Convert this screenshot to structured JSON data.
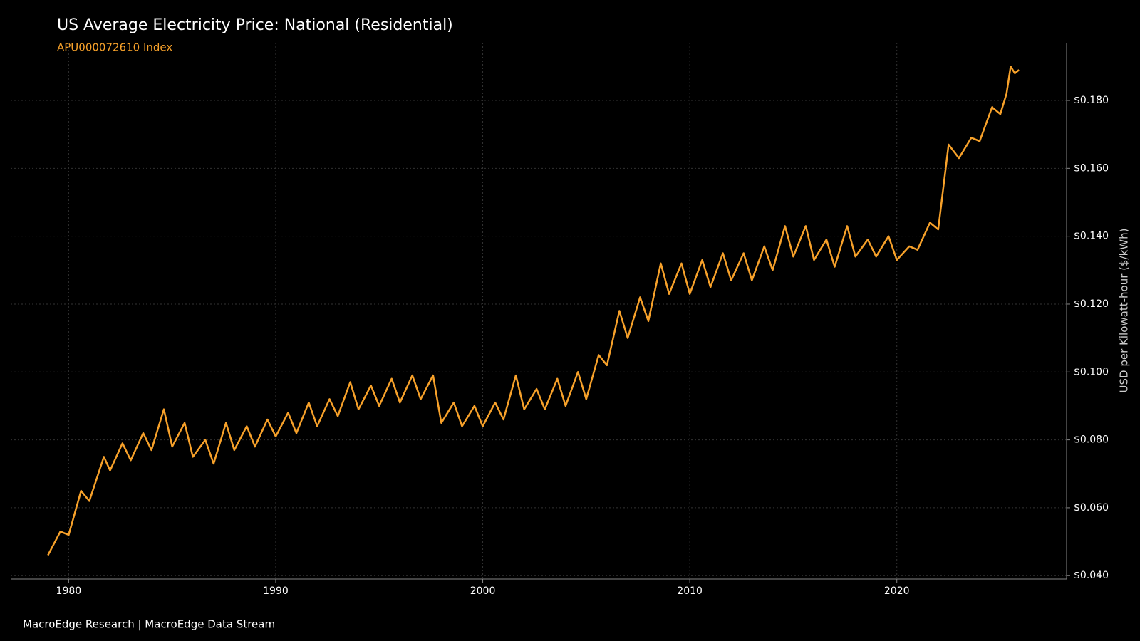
{
  "chart_data": {
    "type": "line",
    "title": "US Average Electricity Price: National (Residential)",
    "subtitle": "APU000072610 Index",
    "source": "MacroEdge Research | MacroEdge Data Stream",
    "y_label": "USD per Kilowatt-hour ($/kWh)",
    "color": "#f7a12a",
    "grid": true,
    "x": [
      1979.0,
      1979.6,
      1980.0,
      1980.6,
      1981.0,
      1981.7,
      1982.0,
      1982.6,
      1983.0,
      1983.6,
      1984.0,
      1984.6,
      1985.0,
      1985.6,
      1986.0,
      1986.6,
      1987.0,
      1987.6,
      1988.0,
      1988.6,
      1989.0,
      1989.6,
      1990.0,
      1990.6,
      1991.0,
      1991.6,
      1992.0,
      1992.6,
      1993.0,
      1993.6,
      1994.0,
      1994.6,
      1995.0,
      1995.6,
      1996.0,
      1996.6,
      1997.0,
      1997.6,
      1998.0,
      1998.6,
      1999.0,
      1999.6,
      2000.0,
      2000.6,
      2001.0,
      2001.6,
      2002.0,
      2002.6,
      2003.0,
      2003.6,
      2004.0,
      2004.6,
      2005.0,
      2005.6,
      2006.0,
      2006.6,
      2007.0,
      2007.6,
      2008.0,
      2008.6,
      2009.0,
      2009.6,
      2010.0,
      2010.6,
      2011.0,
      2011.6,
      2012.0,
      2012.6,
      2013.0,
      2013.6,
      2014.0,
      2014.6,
      2015.0,
      2015.6,
      2016.0,
      2016.6,
      2017.0,
      2017.6,
      2018.0,
      2018.6,
      2019.0,
      2019.6,
      2020.0,
      2020.6,
      2021.0,
      2021.6,
      2022.0,
      2022.5,
      2023.0,
      2023.6,
      2024.0,
      2024.6,
      2025.0,
      2025.3,
      2025.5,
      2025.7,
      2025.9
    ],
    "values": [
      0.046,
      0.053,
      0.052,
      0.065,
      0.062,
      0.075,
      0.071,
      0.079,
      0.074,
      0.082,
      0.077,
      0.089,
      0.078,
      0.085,
      0.075,
      0.08,
      0.073,
      0.085,
      0.077,
      0.084,
      0.078,
      0.086,
      0.081,
      0.088,
      0.082,
      0.091,
      0.084,
      0.092,
      0.087,
      0.097,
      0.089,
      0.096,
      0.09,
      0.098,
      0.091,
      0.099,
      0.092,
      0.099,
      0.085,
      0.091,
      0.084,
      0.09,
      0.084,
      0.091,
      0.086,
      0.099,
      0.089,
      0.095,
      0.089,
      0.098,
      0.09,
      0.1,
      0.092,
      0.105,
      0.102,
      0.118,
      0.11,
      0.122,
      0.115,
      0.132,
      0.123,
      0.132,
      0.123,
      0.133,
      0.125,
      0.135,
      0.127,
      0.135,
      0.127,
      0.137,
      0.13,
      0.143,
      0.134,
      0.143,
      0.133,
      0.139,
      0.131,
      0.143,
      0.134,
      0.139,
      0.134,
      0.14,
      0.133,
      0.137,
      0.136,
      0.144,
      0.142,
      0.167,
      0.163,
      0.169,
      0.168,
      0.178,
      0.176,
      0.182,
      0.19,
      0.188,
      0.189
    ],
    "xlim": [
      1977.2,
      2028.2
    ],
    "xticks": [
      1980,
      1990,
      2000,
      2010,
      2020
    ],
    "ylim": [
      0.039,
      0.197
    ],
    "yticks": [
      {
        "value": 0.04,
        "label": "$0.040"
      },
      {
        "value": 0.06,
        "label": "$0.060"
      },
      {
        "value": 0.08,
        "label": "$0.080"
      },
      {
        "value": 0.1,
        "label": "$0.100"
      },
      {
        "value": 0.12,
        "label": "$0.120"
      },
      {
        "value": 0.14,
        "label": "$0.140"
      },
      {
        "value": 0.16,
        "label": "$0.160"
      },
      {
        "value": 0.18,
        "label": "$0.180"
      }
    ]
  }
}
